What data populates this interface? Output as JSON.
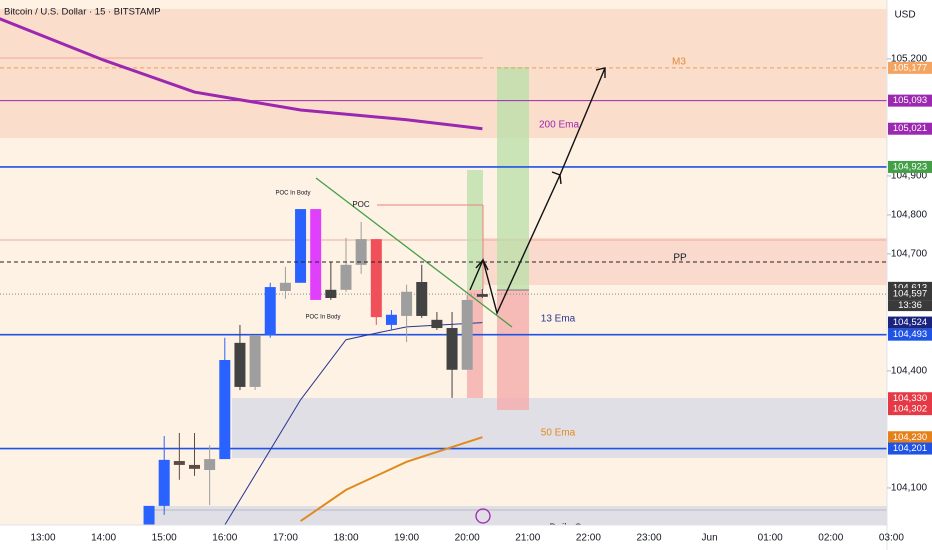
{
  "header": {
    "title": "Bitcoin / U.S. Dollar · 15 · BITSTAMP",
    "currency": "USD"
  },
  "chart_data": {
    "type": "candlestick",
    "ylim": [
      104005,
      105351
    ],
    "yticks": [
      {
        "value": 105200,
        "label": "105,200"
      },
      {
        "value": 104900,
        "label": "104,900"
      },
      {
        "value": 104800,
        "label": "104,800"
      },
      {
        "value": 104700,
        "label": "104,700"
      },
      {
        "value": 104400,
        "label": "104,400"
      },
      {
        "value": 104100,
        "label": "104,100"
      }
    ],
    "xticks": [
      "13:00",
      "14:00",
      "15:00",
      "16:00",
      "17:00",
      "18:00",
      "19:00",
      "20:00",
      "21:00",
      "22:00",
      "23:00",
      "Jun",
      "01:00",
      "02:00",
      "03:00"
    ],
    "candles": {
      "x": [
        "14:45",
        "15:00",
        "15:15",
        "15:30",
        "15:45",
        "16:00",
        "16:15",
        "16:30",
        "16:45",
        "17:00",
        "17:15",
        "17:30",
        "17:45",
        "18:00",
        "18:15",
        "18:30",
        "18:45",
        "19:00",
        "19:15",
        "19:30",
        "19:45",
        "20:00",
        "20:15"
      ],
      "open": [
        104000,
        104054,
        104169,
        104159,
        104146,
        104174,
        104472,
        104359,
        104492,
        104605,
        104626,
        104815,
        104608,
        104608,
        104672,
        104738,
        104518,
        104541,
        104628,
        104531,
        104510,
        104403,
        104590
      ],
      "high": [
        104054,
        104233,
        104241,
        104241,
        104210,
        104485,
        104518,
        104492,
        104626,
        104667,
        104815,
        104815,
        104679,
        104741,
        104782,
        104738,
        104556,
        104621,
        104672,
        104551,
        104551,
        104595,
        104610
      ],
      "low": [
        104000,
        104031,
        104121,
        104131,
        104056,
        104174,
        104351,
        104351,
        104485,
        104585,
        104626,
        104582,
        104582,
        104603,
        104649,
        104518,
        104505,
        104474,
        104536,
        104505,
        104331,
        104403,
        104587
      ],
      "close": [
        104054,
        104172,
        104159,
        104149,
        104174,
        104428,
        104359,
        104492,
        104615,
        104626,
        104815,
        104582,
        104587,
        104672,
        104738,
        104538,
        104544,
        104603,
        104541,
        104510,
        104403,
        104582,
        104597
      ],
      "colors": [
        "#2962ff",
        "#2962ff",
        "#5d4a44",
        "#5d4a44",
        "#9e9e9e",
        "#2962ff",
        "#424242",
        "#9e9e9e",
        "#2962ff",
        "#9e9e9e",
        "#2962ff",
        "#e040fb",
        "#424242",
        "#9e9e9e",
        "#9e9e9e",
        "#f0505a",
        "#2962ff",
        "#9e9e9e",
        "#424242",
        "#424242",
        "#424242",
        "#9e9e9e",
        "#424242"
      ]
    },
    "series": [
      {
        "name": "200 Ema",
        "color": "#9c27b0",
        "width": 3,
        "x": [
          "12:15",
          "14:00",
          "15:30",
          "17:15",
          "19:00",
          "20:15"
        ],
        "values": [
          105305,
          105197,
          105115,
          105069,
          105044,
          105021
        ]
      },
      {
        "name": "13 Ema",
        "color": "#283593",
        "width": 1,
        "x": [
          "16:00",
          "17:15",
          "18:00",
          "18:30",
          "19:00",
          "20:15"
        ],
        "values": [
          104005,
          104326,
          104480,
          104497,
          104513,
          104524
        ]
      },
      {
        "name": "50 Ema",
        "color": "#e08a1e",
        "width": 2,
        "x": [
          "17:15",
          "18:00",
          "19:00",
          "20:15"
        ],
        "values": [
          104015,
          104095,
          104167,
          104230
        ]
      }
    ],
    "levels": [
      {
        "value": 105177,
        "label": "105,177",
        "tag_color": "#f4a460",
        "line_color": "#f0a050",
        "line_style": "dashed"
      },
      {
        "value": 105093,
        "label": "105,093",
        "tag_color": "#9c27b0",
        "line_color": "#9c27b0",
        "line_style": "solid"
      },
      {
        "value": 105021,
        "label": "105,021",
        "tag_color": "#9c27b0"
      },
      {
        "value": 104923,
        "label": "104,923",
        "tag_color": "#43a047",
        "line_color": "#1e53e5",
        "line_style": "thick"
      },
      {
        "value": 104613,
        "label": "104,613",
        "tag_color": "#3a3a3a"
      },
      {
        "value": 104597,
        "label": "104,597",
        "tag_color": "#3a3a3a",
        "line_color": "#888888",
        "line_style": "dotted"
      },
      {
        "value": 104524,
        "label": "104,524",
        "tag_color": "#1a237e"
      },
      {
        "value": 104493,
        "label": "104,493",
        "tag_color": "#1e53e5",
        "line_color": "#1e53e5",
        "line_style": "thick"
      },
      {
        "value": 104330,
        "label": "104,330",
        "tag_color": "#e53945"
      },
      {
        "value": 104302,
        "label": "104,302",
        "tag_color": "#e53945"
      },
      {
        "value": 104230,
        "label": "104,230",
        "tag_color": "#e6801a"
      },
      {
        "value": 104201,
        "label": "104,201",
        "tag_color": "#1e53e5",
        "line_color": "#1e53e5",
        "line_style": "thick"
      }
    ],
    "countdown": "13:36",
    "annotations": {
      "m3": "M3",
      "ema200": "200 Ema",
      "pp": "PP",
      "ema13": "13 Ema",
      "ema50": "50 Ema",
      "poc": "POC",
      "poc_body_top": "POC In Body",
      "poc_body_bottom": "POC In Body",
      "daily_open": "Daily Open"
    }
  }
}
